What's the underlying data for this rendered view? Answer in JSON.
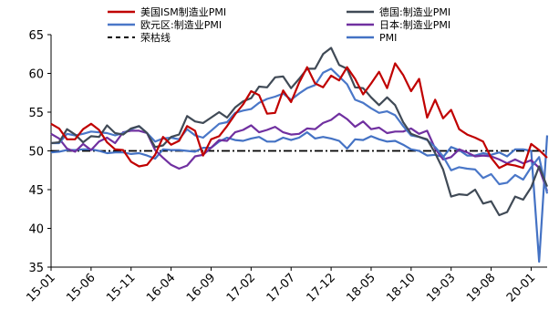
{
  "chart_data": {
    "type": "line",
    "x": [
      "15-01",
      "15-02",
      "15-03",
      "15-04",
      "15-05",
      "15-06",
      "15-07",
      "15-08",
      "15-09",
      "15-10",
      "15-11",
      "15-12",
      "16-01",
      "16-02",
      "16-03",
      "16-04",
      "16-05",
      "16-06",
      "16-07",
      "16-08",
      "16-09",
      "16-10",
      "16-11",
      "16-12",
      "17-01",
      "17-02",
      "17-03",
      "17-04",
      "17-05",
      "17-06",
      "17-07",
      "17-08",
      "17-09",
      "17-10",
      "17-11",
      "17-12",
      "18-01",
      "18-02",
      "18-03",
      "18-04",
      "18-05",
      "18-06",
      "18-07",
      "18-08",
      "18-09",
      "18-10",
      "18-11",
      "18-12",
      "19-01",
      "19-02",
      "19-03",
      "19-04",
      "19-05",
      "19-06",
      "19-07",
      "19-08",
      "19-09",
      "19-10",
      "19-11",
      "19-12",
      "20-01",
      "20-02",
      "20-03"
    ],
    "xticks": [
      "15-01",
      "15-06",
      "15-11",
      "16-04",
      "16-09",
      "17-02",
      "17-07",
      "17-12",
      "18-05",
      "18-10",
      "19-03",
      "19-08",
      "20-01"
    ],
    "ylim": [
      35,
      65
    ],
    "yticks": [
      35,
      40,
      45,
      50,
      55,
      60,
      65
    ],
    "legend_position": "top",
    "reference_line": {
      "name": "荣枯线",
      "value": 50,
      "color": "#000000"
    },
    "series": [
      {
        "name": "美国ISM制造业PMI",
        "color": "#c00000",
        "values": [
          53.5,
          52.9,
          51.5,
          51.5,
          52.8,
          53.5,
          52.7,
          51.1,
          50.2,
          50.1,
          48.6,
          48.0,
          48.2,
          49.5,
          51.8,
          50.8,
          51.3,
          53.2,
          52.6,
          49.4,
          51.5,
          51.9,
          53.2,
          54.7,
          56.0,
          57.7,
          57.2,
          54.8,
          54.9,
          57.8,
          56.3,
          58.8,
          60.8,
          58.7,
          58.2,
          59.7,
          59.1,
          60.8,
          59.3,
          57.3,
          58.7,
          60.2,
          58.1,
          61.3,
          59.8,
          57.7,
          59.3,
          54.3,
          56.6,
          54.2,
          55.3,
          52.8,
          52.1,
          51.7,
          51.2,
          49.1,
          47.8,
          48.3,
          48.1,
          47.8,
          50.9,
          50.1,
          49.1
        ]
      },
      {
        "name": "德国:制造业PMI",
        "color": "#404a56",
        "values": [
          51.0,
          51.1,
          52.8,
          52.1,
          51.1,
          51.9,
          51.8,
          53.3,
          52.3,
          52.1,
          52.9,
          53.2,
          52.3,
          50.5,
          50.7,
          51.8,
          52.1,
          54.5,
          53.8,
          53.6,
          54.3,
          55.0,
          54.3,
          55.6,
          56.4,
          56.8,
          58.3,
          58.2,
          59.5,
          59.6,
          58.1,
          59.3,
          60.6,
          60.6,
          62.5,
          63.3,
          61.1,
          60.6,
          58.2,
          58.1,
          56.9,
          55.9,
          56.9,
          55.9,
          53.7,
          52.2,
          51.8,
          51.5,
          49.7,
          47.6,
          44.1,
          44.4,
          44.3,
          45.0,
          43.2,
          43.5,
          41.7,
          42.1,
          44.1,
          43.7,
          45.3,
          48.0,
          45.4
        ]
      },
      {
        "name": "欧元区:制造业PMI",
        "color": "#4a77c8",
        "values": [
          51.0,
          51.0,
          52.2,
          52.0,
          52.2,
          52.5,
          52.4,
          52.3,
          52.0,
          52.3,
          52.8,
          53.2,
          52.3,
          51.2,
          51.6,
          51.7,
          51.5,
          52.8,
          52.0,
          51.7,
          52.6,
          53.5,
          53.7,
          54.9,
          55.2,
          55.4,
          56.2,
          56.7,
          57.0,
          57.4,
          56.6,
          57.4,
          58.1,
          58.5,
          60.1,
          60.6,
          59.6,
          58.6,
          56.6,
          56.2,
          55.5,
          54.9,
          55.1,
          54.6,
          53.2,
          52.0,
          51.8,
          51.4,
          50.5,
          49.3,
          47.5,
          47.9,
          47.7,
          47.6,
          46.5,
          47.0,
          45.7,
          45.9,
          46.9,
          46.3,
          47.9,
          49.2,
          44.5
        ]
      },
      {
        "name": "日本:制造业PMI",
        "color": "#7030a0",
        "values": [
          52.2,
          51.6,
          50.3,
          49.9,
          50.9,
          50.1,
          51.2,
          51.7,
          51.0,
          52.4,
          52.6,
          52.6,
          52.3,
          50.1,
          49.1,
          48.2,
          47.7,
          48.1,
          49.3,
          49.5,
          50.4,
          51.4,
          51.3,
          52.4,
          52.7,
          53.3,
          52.4,
          52.7,
          53.1,
          52.4,
          52.1,
          52.2,
          52.9,
          52.8,
          53.6,
          54.0,
          54.8,
          54.1,
          53.1,
          53.8,
          52.8,
          53.0,
          52.3,
          52.5,
          52.5,
          52.9,
          52.2,
          52.6,
          50.3,
          48.9,
          49.2,
          50.2,
          49.8,
          49.3,
          49.4,
          49.3,
          48.9,
          48.4,
          48.9,
          48.4,
          48.8,
          47.8,
          44.8
        ]
      },
      {
        "name": "PMI",
        "color": "#4472c4",
        "values": [
          49.8,
          49.9,
          50.1,
          50.1,
          50.2,
          50.2,
          50.0,
          49.7,
          49.8,
          49.8,
          49.6,
          49.7,
          49.4,
          49.0,
          50.2,
          50.1,
          50.1,
          50.0,
          49.9,
          50.4,
          50.4,
          51.2,
          51.7,
          51.4,
          51.3,
          51.6,
          51.8,
          51.2,
          51.2,
          51.7,
          51.4,
          51.7,
          52.4,
          51.6,
          51.8,
          51.6,
          51.3,
          50.3,
          51.5,
          51.4,
          51.9,
          51.5,
          51.2,
          51.3,
          50.8,
          50.2,
          50.0,
          49.4,
          49.5,
          49.2,
          50.5,
          50.1,
          49.4,
          49.4,
          49.7,
          49.5,
          49.8,
          49.3,
          50.2,
          50.2,
          50.0,
          35.7,
          52.0
        ]
      }
    ]
  }
}
